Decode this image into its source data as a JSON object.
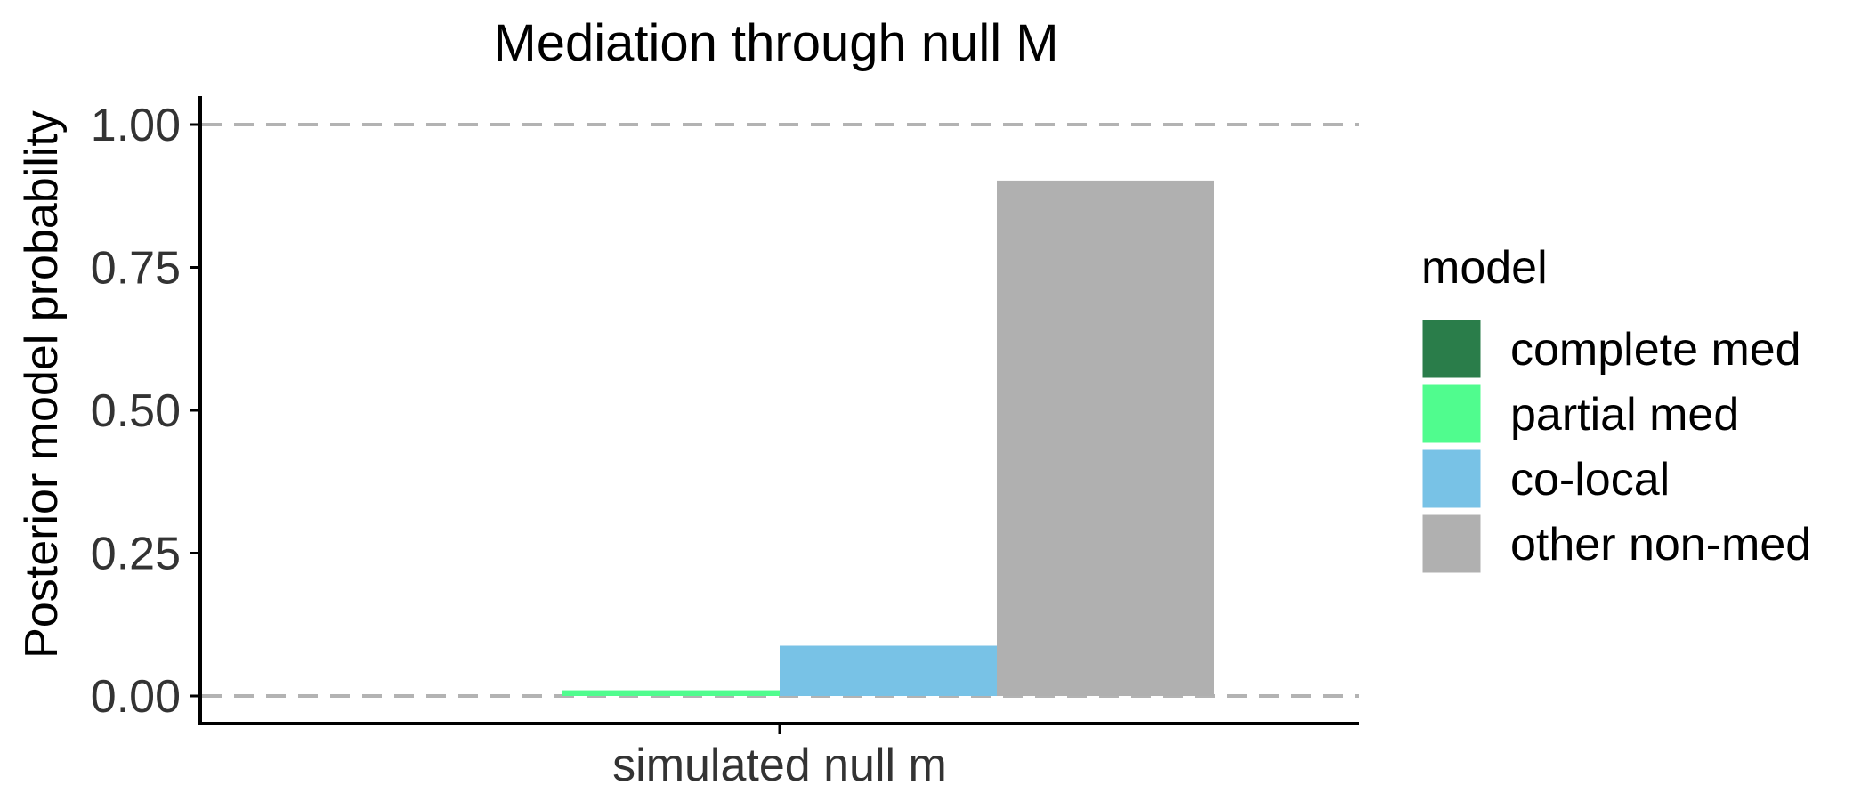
{
  "chart_data": {
    "type": "bar",
    "title": "Mediation through null M",
    "xlabel": "",
    "ylabel": "Posterior model probability",
    "categories": [
      "simulated null m"
    ],
    "ylim": [
      0,
      1.05
    ],
    "yticks": [
      "0.00",
      "0.25",
      "0.50",
      "0.75",
      "1.00"
    ],
    "reference_lines": [
      0,
      1
    ],
    "grid": false,
    "legend_position": "right",
    "legend_title": "model",
    "series": [
      {
        "name": "complete med",
        "color": "#2A7D4A",
        "values": [
          0.0
        ]
      },
      {
        "name": "partial med",
        "color": "#50FC8E",
        "values": [
          0.01
        ]
      },
      {
        "name": "co-local",
        "color": "#78C2E6",
        "values": [
          0.088
        ]
      },
      {
        "name": "other non-med",
        "color": "#B0B0B0",
        "values": [
          0.902
        ]
      }
    ]
  }
}
